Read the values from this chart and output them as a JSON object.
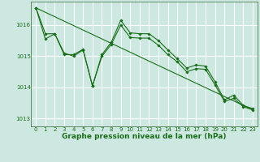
{
  "bg_color": "#cce8e0",
  "grid_color": "#ffffff",
  "line_color": "#1a6e1a",
  "title": "Graphe pression niveau de la mer (hPa)",
  "xlim": [
    -0.5,
    23.5
  ],
  "ylim": [
    1012.75,
    1016.75
  ],
  "yticks": [
    1013,
    1014,
    1015,
    1016
  ],
  "xticks": [
    0,
    1,
    2,
    3,
    4,
    5,
    6,
    7,
    8,
    9,
    10,
    11,
    12,
    13,
    14,
    15,
    16,
    17,
    18,
    19,
    20,
    21,
    22,
    23
  ],
  "series1_x": [
    0,
    1,
    2,
    3,
    4,
    5,
    6,
    7,
    8,
    9,
    10,
    11,
    12,
    13,
    14,
    15,
    16,
    17,
    18,
    19,
    20,
    21,
    22,
    23
  ],
  "series1_y": [
    1016.55,
    1015.72,
    1015.72,
    1015.05,
    1015.05,
    1015.22,
    1014.05,
    1015.05,
    1015.45,
    1016.15,
    1015.75,
    1015.72,
    1015.72,
    1015.5,
    1015.2,
    1014.92,
    1014.62,
    1014.72,
    1014.68,
    1014.18,
    1013.6,
    1013.75,
    1013.42,
    1013.32
  ],
  "series2_x": [
    0,
    1,
    2,
    3,
    4,
    5,
    6,
    7,
    8,
    9,
    10,
    11,
    12,
    13,
    14,
    15,
    16,
    17,
    18,
    19,
    20,
    21,
    22,
    23
  ],
  "series2_y": [
    1016.55,
    1015.55,
    1015.72,
    1015.1,
    1015.0,
    1015.2,
    1014.05,
    1015.0,
    1015.38,
    1016.0,
    1015.6,
    1015.58,
    1015.58,
    1015.35,
    1015.05,
    1014.82,
    1014.5,
    1014.6,
    1014.58,
    1014.08,
    1013.55,
    1013.65,
    1013.38,
    1013.28
  ],
  "trend_x": [
    0,
    23
  ],
  "trend_y": [
    1016.55,
    1013.28
  ],
  "title_fontsize": 6.5,
  "tick_fontsize": 5.0
}
